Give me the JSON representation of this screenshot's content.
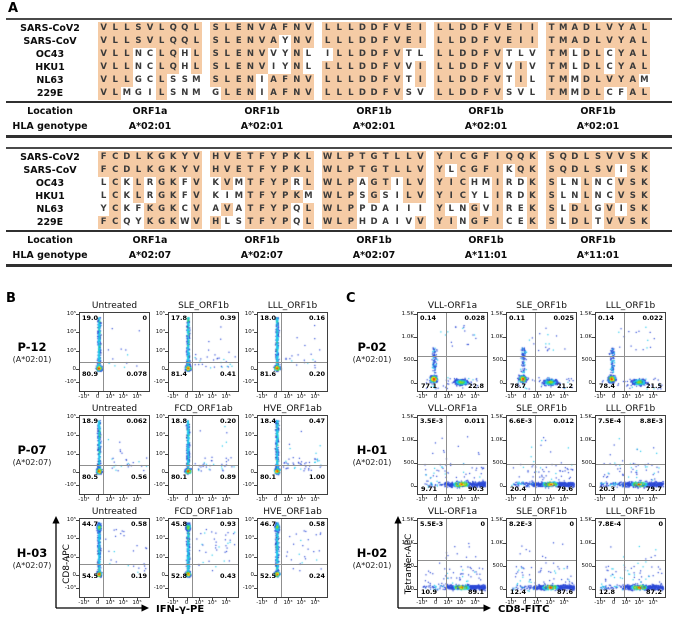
{
  "panels": {
    "a_label": "A",
    "b_label": "B",
    "c_label": "C"
  },
  "panel_a": {
    "highlight_color": "#f5cba5",
    "row_labels": [
      "SARS-CoV2",
      "SARS-CoV",
      "OC43",
      "HKU1",
      "NL63",
      "229E"
    ],
    "location_row_label": "Location",
    "hla_row_label": "HLA genotype",
    "blocks": [
      {
        "sequences": [
          [
            "VLLSVLQQL",
            "SLENVAFNV",
            "LLLDDFVEI",
            "LLDDFVEII",
            "TMADLVYAL"
          ],
          [
            "VLLSVLQQL",
            "SLENVAYNV",
            "LLLDDFVEI",
            "LLDDFVEII",
            "TMADLVYAL"
          ],
          [
            "VLLNCLQHL",
            "SLENVVYNL",
            "ILLDDFVTL",
            "LLDDFVTLV",
            "TMLDLCYAL"
          ],
          [
            "VLLNCLQHL",
            "SLENVIYNL",
            "LLLDDFVVI",
            "LLDDFVVIV",
            "TMLDLCYAL"
          ],
          [
            "VLLGCLSSM",
            "SLENIAFNV",
            "LLLDDFVTI",
            "LLDDFVTIL",
            "TMMDLVYAM"
          ],
          [
            "VLMGILSNM",
            "GLENIAFNV",
            "LLLDDFVSV",
            "LLDDFVSVL",
            "TMMDLCFAL"
          ]
        ],
        "locations": [
          "ORF1a",
          "ORF1b",
          "ORF1b",
          "ORF1b",
          "ORF1b"
        ],
        "hla_genotypes": [
          "A*02:01",
          "A*02:01",
          "A*02:01",
          "A*02:01",
          "A*02:01"
        ]
      },
      {
        "sequences": [
          [
            "FCDLKGKYV",
            "HVETFYPKL",
            "WLPTGTLLV",
            "YICGFIQQK",
            "SQDLSVVSK"
          ],
          [
            "FCDLKGKYV",
            "HVETFYPKL",
            "WLPTGTLLV",
            "YLCGFIKQK",
            "SQDLSVISK"
          ],
          [
            "LCKLRGKFV",
            "KVMTFYPRL",
            "WLPAGTILV",
            "YICHMIRDK",
            "SLNLNCVSK"
          ],
          [
            "LCKLRGKFV",
            "KIMTFYPKM",
            "WLPSGSILV",
            "YICYLIRDK",
            "SLNLNCVSK"
          ],
          [
            "YCKFKGKCV",
            "AVATFYPQL",
            "WLPPDAIII",
            "YLNGVIREK",
            "SLDLGVISK"
          ],
          [
            "FCQYKGKWV",
            "HLSTFYPQL",
            "WLPHDAIVV",
            "YINGFICEK",
            "SLDLTVVSK"
          ]
        ],
        "locations": [
          "ORF1a",
          "ORF1b",
          "ORF1b",
          "ORF1b",
          "ORF1b"
        ],
        "hla_genotypes": [
          "A*02:07",
          "A*02:07",
          "A*02:07",
          "A*11:01",
          "A*11:01"
        ]
      }
    ]
  },
  "panel_b": {
    "y_axis": "CD8-APC",
    "x_axis": "IFN-γ-PE",
    "y_ticks": [
      "10⁵",
      "10⁴",
      "10³",
      "0",
      "-10³"
    ],
    "x_ticks": [
      "-10³",
      "0",
      "10³",
      "10⁴",
      "10⁵"
    ],
    "rows": [
      {
        "sample": "P-12",
        "hla": "(A*02:01)",
        "plots": [
          {
            "title": "Untreated",
            "ul": "19.0",
            "ur": "0",
            "ll": "80.9",
            "lr": "0.078",
            "cloud": "b-col",
            "qx": 0.33,
            "qy": 0.63
          },
          {
            "title": "SLE_ORF1b",
            "ul": "17.8",
            "ur": "0.39",
            "ll": "81.4",
            "lr": "0.41",
            "cloud": "b-col",
            "qx": 0.33,
            "qy": 0.63
          },
          {
            "title": "LLL_ORF1b",
            "ul": "18.0",
            "ur": "0.16",
            "ll": "81.6",
            "lr": "0.20",
            "cloud": "b-col",
            "qx": 0.33,
            "qy": 0.63
          }
        ]
      },
      {
        "sample": "P-07",
        "hla": "(A*02:07)",
        "plots": [
          {
            "title": "Untreated",
            "ul": "18.9",
            "ur": "0.062",
            "ll": "80.5",
            "lr": "0.56",
            "cloud": "b-col",
            "qx": 0.33,
            "qy": 0.63
          },
          {
            "title": "FCD_ORF1ab",
            "ul": "18.8",
            "ur": "0.20",
            "ll": "80.1",
            "lr": "0.89",
            "cloud": "b-col",
            "qx": 0.33,
            "qy": 0.63
          },
          {
            "title": "HVE_ORF1ab",
            "ul": "18.4",
            "ur": "0.47",
            "ll": "80.1",
            "lr": "1.00",
            "cloud": "b-col",
            "qx": 0.33,
            "qy": 0.63
          }
        ]
      },
      {
        "sample": "H-03",
        "hla": "(A*02:07)",
        "plots": [
          {
            "title": "Untreated",
            "ul": "44.7",
            "ur": "0.58",
            "ll": "54.5",
            "lr": "0.19",
            "cloud": "b-col-top",
            "qx": 0.33,
            "qy": 0.58
          },
          {
            "title": "FCD_ORF1ab",
            "ul": "45.8",
            "ur": "0.93",
            "ll": "52.8",
            "lr": "0.43",
            "cloud": "b-col-top",
            "qx": 0.33,
            "qy": 0.58
          },
          {
            "title": "HVE_ORF1ab",
            "ul": "46.7",
            "ur": "0.58",
            "ll": "52.5",
            "lr": "0.24",
            "cloud": "b-col-top",
            "qx": 0.33,
            "qy": 0.58
          }
        ]
      }
    ]
  },
  "panel_c": {
    "y_axis": "Tetramer-APC",
    "x_axis": "CD8-FITC",
    "y_ticks": [
      "1.5K",
      "1.0K",
      "500",
      "0"
    ],
    "x_ticks": [
      "-10³",
      "0",
      "10³",
      "10⁴",
      "10⁵"
    ],
    "rows": [
      {
        "sample": "P-02",
        "hla": "(A*02:01)",
        "plots": [
          {
            "title": "VLL-ORF1a",
            "ul": "0.14",
            "ur": "0.028",
            "ll": "77.1",
            "lr": "22.8",
            "cloud": "c-blobs",
            "qx": 0.41,
            "qy": 0.55
          },
          {
            "title": "SLE_ORF1b",
            "ul": "0.11",
            "ur": "0.025",
            "ll": "78.7",
            "lr": "21.2",
            "cloud": "c-blobs",
            "qx": 0.41,
            "qy": 0.55
          },
          {
            "title": "LLL_ORF1b",
            "ul": "0.14",
            "ur": "0.022",
            "ll": "78.4",
            "lr": "21.5",
            "cloud": "c-blobs",
            "qx": 0.41,
            "qy": 0.55
          }
        ]
      },
      {
        "sample": "H-01",
        "hla": "(A*02:01)",
        "plots": [
          {
            "title": "VLL-ORF1a",
            "ul": "3.5E-3",
            "ur": "0.011",
            "ll": "9.71",
            "lr": "90.3",
            "cloud": "c-band",
            "qx": 0.4,
            "qy": 0.62
          },
          {
            "title": "SLE_ORF1b",
            "ul": "6.6E-3",
            "ur": "0.012",
            "ll": "20.4",
            "lr": "79.6",
            "cloud": "c-band",
            "qx": 0.4,
            "qy": 0.62
          },
          {
            "title": "LLL_ORF1b",
            "ul": "7.5E-4",
            "ur": "8.8E-3",
            "ll": "20.3",
            "lr": "79.7",
            "cloud": "c-band",
            "qx": 0.4,
            "qy": 0.62
          }
        ]
      },
      {
        "sample": "H-02",
        "hla": "(A*02:01)",
        "plots": [
          {
            "title": "VLL-ORF1a",
            "ul": "5.5E-3",
            "ur": "0",
            "ll": "10.9",
            "lr": "89.1",
            "cloud": "c-band",
            "qx": 0.4,
            "qy": 0.52
          },
          {
            "title": "SLE_ORF1b",
            "ul": "8.2E-3",
            "ur": "0",
            "ll": "12.4",
            "lr": "87.6",
            "cloud": "c-band",
            "qx": 0.4,
            "qy": 0.52
          },
          {
            "title": "LLL_ORF1b",
            "ul": "7.8E-4",
            "ur": "0",
            "ll": "12.8",
            "lr": "87.2",
            "cloud": "c-band",
            "qx": 0.4,
            "qy": 0.52
          }
        ]
      }
    ]
  }
}
